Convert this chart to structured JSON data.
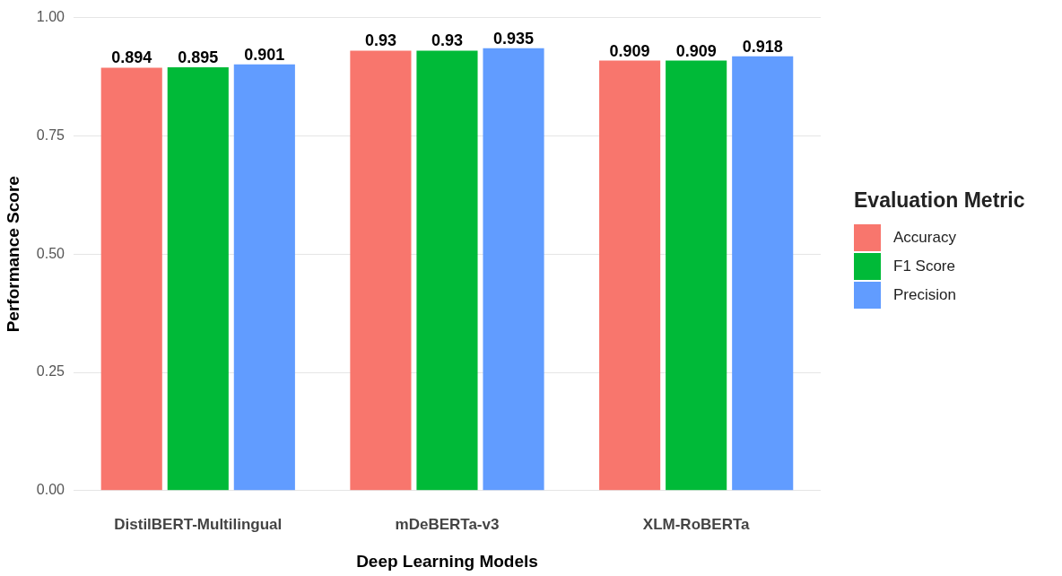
{
  "chart_data": {
    "type": "bar",
    "categories": [
      "DistilBERT-Multilingual",
      "mDeBERTa-v3",
      "XLM-RoBERTa"
    ],
    "series": [
      {
        "name": "Accuracy",
        "color": "#f8766d",
        "values": [
          0.894,
          0.93,
          0.909
        ]
      },
      {
        "name": "F1 Score",
        "color": "#00ba38",
        "values": [
          0.895,
          0.93,
          0.909
        ]
      },
      {
        "name": "Precision",
        "color": "#619cff",
        "values": [
          0.901,
          0.935,
          0.918
        ]
      }
    ],
    "xlabel": "Deep Learning Models",
    "ylabel": "Performance Score",
    "legend_title": "Evaluation Metric",
    "ylim": [
      0,
      1
    ],
    "yticks": [
      {
        "value": 0,
        "label": "0.00"
      },
      {
        "value": 0.25,
        "label": "0.25"
      },
      {
        "value": 0.5,
        "label": "0.50"
      },
      {
        "value": 0.75,
        "label": "0.75"
      },
      {
        "value": 1,
        "label": "1.00"
      }
    ],
    "grid": "y",
    "legend": "right",
    "data_labels": true
  }
}
